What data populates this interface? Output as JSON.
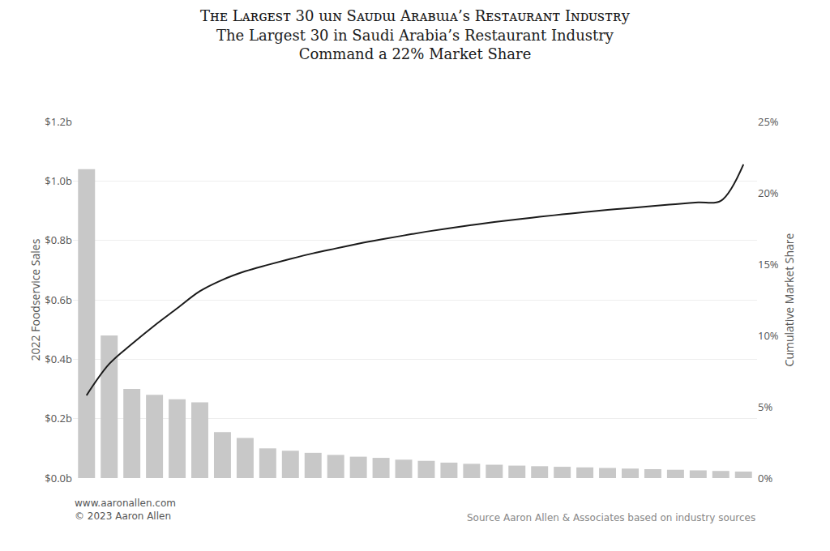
{
  "chart_data": {
    "type": "bar",
    "title": "The Largest 30 in Saudi Arabia’s Restaurant Industry\nCommand a 22% Market Share",
    "annotations": [
      "Tʜᴇ Lᴀʀɢᴇѕᴛ 30 ɯɴ Sᴀᴜᴅɯ Aʀᴀвɯᴀ’ѕ Rᴇѕᴛᴀᴜʀᴀɴᴛ Iɴᴅᴜѕᴛʀу",
      "www.aaronallen.com\n© 2023 Aaron Allen",
      "Source Aaron Allen & Associates based on industry sources"
    ],
    "ylabel": "2022 Foodservice Sales",
    "y2label": "Cumulative Market Share",
    "categories": [
      null,
      null,
      null,
      null,
      null,
      null,
      null,
      null,
      null,
      null,
      null,
      null,
      null,
      null,
      null,
      null,
      null,
      null,
      null,
      null,
      null,
      null,
      null,
      null,
      null,
      null,
      null,
      null,
      null,
      null
    ],
    "series": [
      {
        "type": "bar",
        "color": "#c8c8c8",
        "axis": "y",
        "values": [
          1.04,
          0.48,
          0.3,
          0.28,
          0.265,
          0.255,
          0.155,
          0.135,
          0.1,
          0.092,
          0.085,
          0.078,
          0.072,
          0.068,
          0.062,
          0.058,
          0.052,
          0.048,
          0.045,
          0.042,
          0.04,
          0.038,
          0.036,
          0.034,
          0.032,
          0.03,
          0.028,
          0.026,
          0.024,
          0.022
        ]
      },
      {
        "type": "line",
        "color": "#1a1a1a",
        "axis": "y2",
        "line_style": "solid",
        "values": [
          5.8,
          8.0,
          9.4,
          10.7,
          11.9,
          13.1,
          13.9,
          14.5,
          14.95,
          15.37,
          15.76,
          16.1,
          16.43,
          16.73,
          17.01,
          17.28,
          17.52,
          17.74,
          17.95,
          18.14,
          18.32,
          18.49,
          18.65,
          18.8,
          18.94,
          19.08,
          19.21,
          19.33,
          19.44,
          22.0
        ]
      }
    ],
    "ylim": [
      0,
      1.2
    ],
    "yticks": [
      {
        "value": 0,
        "label": "$0.0b"
      },
      {
        "value": 0.2,
        "label": "$0.2b"
      },
      {
        "value": 0.4,
        "label": "$0.4b"
      },
      {
        "value": 0.6,
        "label": "$0.6b"
      },
      {
        "value": 0.8,
        "label": "$0.8b"
      },
      {
        "value": 1.0,
        "label": "$1.0b"
      },
      {
        "value": 1.2,
        "label": "$1.2b"
      }
    ],
    "y2lim": [
      0,
      25
    ],
    "y2ticks": [
      {
        "value": 0,
        "label": "0%"
      },
      {
        "value": 5,
        "label": "5%"
      },
      {
        "value": 10,
        "label": "10%"
      },
      {
        "value": 15,
        "label": "15%"
      },
      {
        "value": 20,
        "label": "20%"
      },
      {
        "value": 25,
        "label": "25%"
      }
    ],
    "grid": true,
    "tick_labels": "y"
  }
}
